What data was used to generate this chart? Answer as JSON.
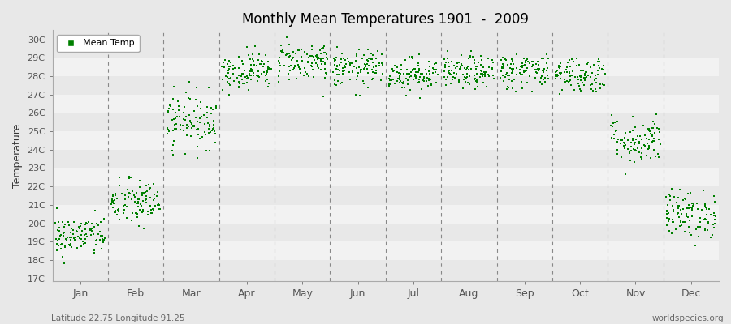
{
  "title": "Monthly Mean Temperatures 1901  -  2009",
  "ylabel": "Temperature",
  "subtitle_left": "Latitude 22.75 Longitude 91.25",
  "subtitle_right": "worldspecies.org",
  "legend_label": "Mean Temp",
  "marker_color": "#008000",
  "marker_size": 4,
  "months": [
    "Jan",
    "Feb",
    "Mar",
    "Apr",
    "May",
    "Jun",
    "Jul",
    "Aug",
    "Sep",
    "Oct",
    "Nov",
    "Dec"
  ],
  "ytick_labels": [
    "17C",
    "18C",
    "19C",
    "20C",
    "21C",
    "22C",
    "23C",
    "24C",
    "25C",
    "26C",
    "27C",
    "28C",
    "29C",
    "30C"
  ],
  "ymin": 17,
  "ymax": 30.5,
  "plot_bg": "#e8e8e8",
  "fig_bg": "#e8e8e8",
  "hband_color_even": "#f2f2f2",
  "hband_color_odd": "#e8e8e8",
  "mean_temps": [
    19.3,
    21.1,
    25.6,
    28.3,
    28.8,
    28.4,
    28.1,
    28.2,
    28.3,
    28.1,
    24.5,
    20.5
  ],
  "std_temps": [
    0.55,
    0.65,
    0.75,
    0.5,
    0.55,
    0.5,
    0.45,
    0.45,
    0.5,
    0.5,
    0.65,
    0.65
  ],
  "years": 109
}
